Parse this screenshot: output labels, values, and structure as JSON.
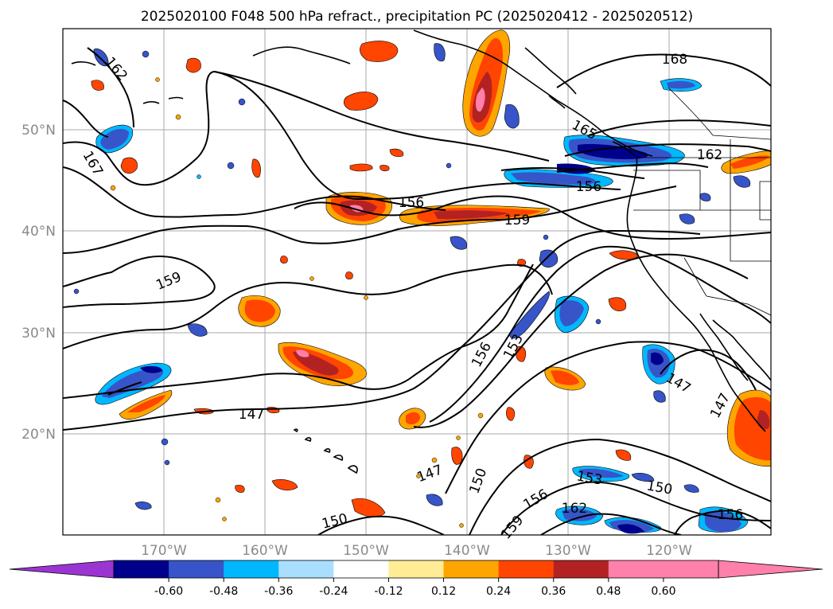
{
  "title": "2025020100 F048 500 hPa refract., precipitation PC (2025020412 - 2025020512)",
  "lat_labels": [
    "50°N",
    "40°N",
    "30°N",
    "20°N"
  ],
  "lon_labels": [
    "170°W",
    "160°W",
    "150°W",
    "140°W",
    "130°W",
    "120°W"
  ],
  "colorbar": {
    "ticks": [
      "-0.60",
      "-0.48",
      "-0.36",
      "-0.24",
      "-0.12",
      "0.12",
      "0.24",
      "0.36",
      "0.48",
      "0.60"
    ],
    "colors": [
      "#9a35d2",
      "#00008b",
      "#3755c8",
      "#00b8ff",
      "#aadeff",
      "#ffffff",
      "#ffec94",
      "#ffa500",
      "#ff4500",
      "#b22222",
      "#ff80aa",
      "#ff80aa"
    ]
  },
  "contour_labels": [
    "162",
    "167",
    "168",
    "165",
    "162",
    "156",
    "156",
    "159",
    "159",
    "156",
    "153",
    "147",
    "147",
    "147",
    "147",
    "150",
    "150",
    "153",
    "150",
    "156",
    "162",
    "159",
    "156"
  ],
  "colors": {
    "neg_dark": "#00008b",
    "neg_mid": "#3755c8",
    "neg_light": "#00b8ff",
    "pos_yellow": "#ffec94",
    "pos_orange": "#ffa500",
    "pos_red": "#ff4500",
    "pos_darkred": "#b22222",
    "pos_pink": "#ff80aa"
  }
}
